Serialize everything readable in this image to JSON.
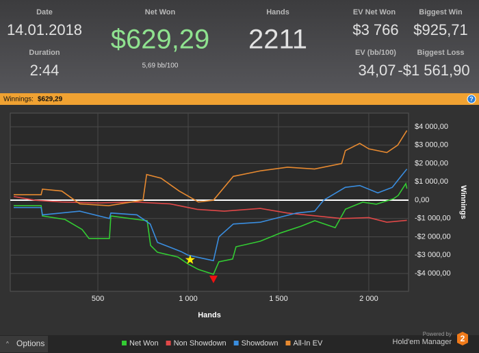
{
  "header": {
    "stats": [
      {
        "label": "Date",
        "value": "14.01.2018"
      },
      {
        "label": "Duration",
        "value": "2:44"
      },
      {
        "label": "Net Won",
        "value": "$629,29",
        "sub": "5,69 bb/100"
      },
      {
        "label": "Hands",
        "value": "2211"
      },
      {
        "label": "EV Net Won",
        "value": "$3 766"
      },
      {
        "label": "Biggest Win",
        "value": "$925,71"
      },
      {
        "label": "EV (bb/100)",
        "value": "34,07"
      },
      {
        "label": "Biggest Loss",
        "value": "-$1 561,90"
      }
    ]
  },
  "banner": {
    "label": "Winnings:",
    "value": "$629,29",
    "help": "?"
  },
  "chart_data": {
    "type": "line",
    "x_label": "Hands",
    "y_label": "Winnings",
    "xlim": [
      15,
      2220
    ],
    "ylim": [
      -4970,
      4750
    ],
    "xticks": [
      {
        "value": 500,
        "label": "500"
      },
      {
        "value": 1000,
        "label": "1 000"
      },
      {
        "value": 1500,
        "label": "1 500"
      },
      {
        "value": 2000,
        "label": "2 000"
      }
    ],
    "yticks": [
      {
        "value": 4000,
        "label": "$4 000,00"
      },
      {
        "value": 3000,
        "label": "$3 000,00"
      },
      {
        "value": 2000,
        "label": "$2 000,00"
      },
      {
        "value": 1000,
        "label": "$1 000,00"
      },
      {
        "value": 0,
        "label": "0,00"
      },
      {
        "value": -1000,
        "label": "-$1 000,00"
      },
      {
        "value": -2000,
        "label": "-$2 000,00"
      },
      {
        "value": -3000,
        "label": "-$3 000,00"
      },
      {
        "value": -4000,
        "label": "-$4 000,00"
      }
    ],
    "grid": true,
    "series": [
      {
        "name": "Net Won",
        "color": "#33cc33",
        "x": [
          34,
          186,
          193,
          318,
          413,
          451,
          564,
          572,
          716,
          773,
          792,
          830,
          943,
          1000,
          1057,
          1140,
          1170,
          1246,
          1265,
          1398,
          1511,
          1625,
          1701,
          1814,
          1871,
          1966,
          2042,
          2136,
          2163,
          2205,
          2211
        ],
        "values": [
          -300,
          -300,
          -860,
          -1050,
          -1600,
          -2090,
          -2090,
          -860,
          -1050,
          -1120,
          -2470,
          -2840,
          -3100,
          -3480,
          -3780,
          -4040,
          -3360,
          -3210,
          -2540,
          -2240,
          -1790,
          -1420,
          -1120,
          -1500,
          -490,
          -110,
          -220,
          75,
          260,
          900,
          629
        ]
      },
      {
        "name": "Non Showdown",
        "color": "#e04848",
        "x": [
          34,
          150,
          300,
          500,
          700,
          900,
          1050,
          1200,
          1400,
          1550,
          1700,
          1850,
          2000,
          2100,
          2211
        ],
        "values": [
          200,
          0,
          -100,
          -150,
          -100,
          -200,
          -500,
          -600,
          -450,
          -700,
          -850,
          -1000,
          -950,
          -1200,
          -1100
        ]
      },
      {
        "name": "Showdown",
        "color": "#3a8ee0",
        "x": [
          34,
          186,
          193,
          400,
          564,
          572,
          716,
          790,
          830,
          960,
          1000,
          1140,
          1170,
          1250,
          1400,
          1600,
          1700,
          1750,
          1870,
          1950,
          2050,
          2130,
          2170,
          2211
        ],
        "values": [
          -400,
          -400,
          -800,
          -600,
          -1000,
          -700,
          -800,
          -1300,
          -2300,
          -2800,
          -3000,
          -3300,
          -2000,
          -1300,
          -1200,
          -700,
          -600,
          0,
          700,
          800,
          400,
          700,
          1200,
          1700
        ]
      },
      {
        "name": "All-In EV",
        "color": "#e88a30",
        "x": [
          34,
          186,
          193,
          300,
          400,
          560,
          750,
          770,
          850,
          950,
          1057,
          1140,
          1250,
          1400,
          1550,
          1700,
          1850,
          1870,
          1950,
          2000,
          2100,
          2160,
          2211
        ],
        "values": [
          300,
          300,
          600,
          500,
          -200,
          -300,
          0,
          1400,
          1200,
          500,
          -100,
          0,
          1300,
          1600,
          1800,
          1700,
          2000,
          2700,
          3100,
          2800,
          2600,
          3000,
          3800
        ]
      }
    ],
    "markers": [
      {
        "shape": "star",
        "color": "#ffee00",
        "x": 1011,
        "y": -3250
      },
      {
        "shape": "triangle",
        "color": "#ee1111",
        "x": 1140,
        "y": -4300
      }
    ]
  },
  "footer": {
    "options": "Options",
    "powered": "Powered by",
    "brand": "Hold'em Manager",
    "version": "2"
  }
}
